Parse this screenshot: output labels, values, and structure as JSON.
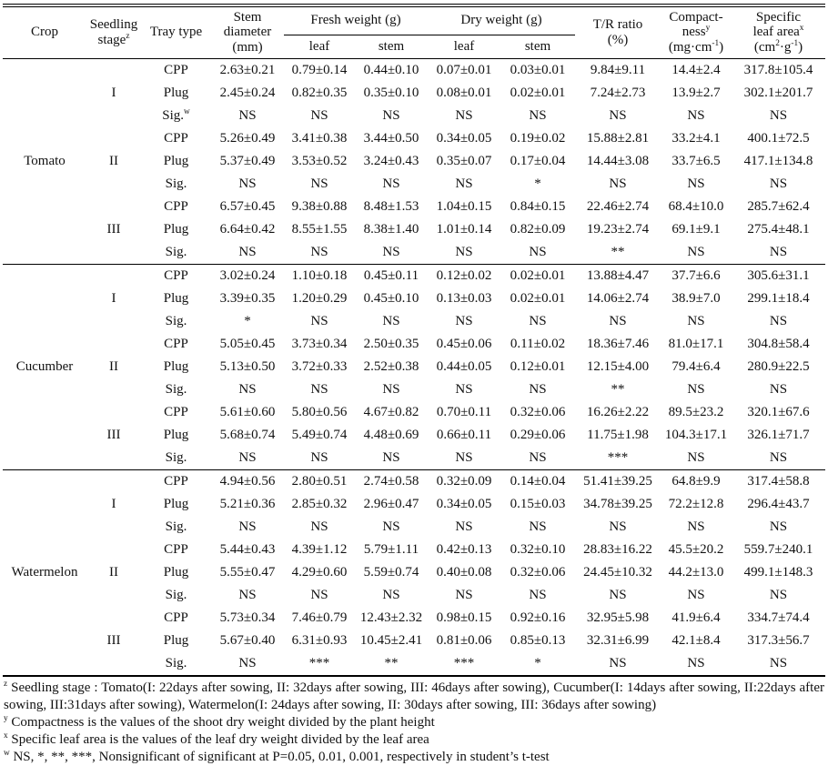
{
  "page": {
    "background": "#ffffff",
    "text_color": "#111111"
  },
  "table": {
    "header": {
      "crop": "Crop",
      "seedling_stage": {
        "line1": "Seedling",
        "line2": "stage",
        "sup": "z"
      },
      "tray_type": "Tray type",
      "stem_diameter": {
        "line1": "Stem",
        "line2": "diameter",
        "line3": "(mm)"
      },
      "fresh_weight": "Fresh weight (g)",
      "dry_weight": "Dry weight (g)",
      "sub_leaf": "leaf",
      "sub_stem": "stem",
      "tr_ratio": {
        "line1": "T/R ratio",
        "line2": "(%)"
      },
      "compactness": {
        "line1": "Compact-",
        "line2": "ness",
        "sup": "y",
        "unit_pre": "(mg·cm",
        "unit_sup": "-1",
        "unit_post": ")"
      },
      "specific_leaf_area": {
        "line1": "Specific",
        "line2": "leaf area",
        "sup": "x",
        "unit_pre": "(cm",
        "unit_sup1": "2",
        "unit_mid": "·g",
        "unit_sup2": "-1",
        "unit_post": ")"
      }
    },
    "sections": [
      {
        "crop": "Tomato",
        "stages": [
          {
            "stage": "I",
            "rows": [
              {
                "tray": "CPP",
                "values": [
                  "2.63±0.21",
                  "0.79±0.14",
                  "0.44±0.10",
                  "0.07±0.01",
                  "0.03±0.01",
                  "9.84±9.11",
                  "14.4±2.4",
                  "317.8±105.4"
                ]
              },
              {
                "tray": "Plug",
                "values": [
                  "2.45±0.24",
                  "0.82±0.35",
                  "0.35±0.10",
                  "0.08±0.01",
                  "0.02±0.01",
                  "7.24±2.73",
                  "13.9±2.7",
                  "302.1±201.7"
                ]
              },
              {
                "tray": "Sig.",
                "tray_sup": "w",
                "values": [
                  "NS",
                  "NS",
                  "NS",
                  "NS",
                  "NS",
                  "NS",
                  "NS",
                  "NS"
                ]
              }
            ]
          },
          {
            "stage": "II",
            "rows": [
              {
                "tray": "CPP",
                "values": [
                  "5.26±0.49",
                  "3.41±0.38",
                  "3.44±0.50",
                  "0.34±0.05",
                  "0.19±0.02",
                  "15.88±2.81",
                  "33.2±4.1",
                  "400.1±72.5"
                ]
              },
              {
                "tray": "Plug",
                "values": [
                  "5.37±0.49",
                  "3.53±0.52",
                  "3.24±0.43",
                  "0.35±0.07",
                  "0.17±0.04",
                  "14.44±3.08",
                  "33.7±6.5",
                  "417.1±134.8"
                ]
              },
              {
                "tray": "Sig.",
                "values": [
                  "NS",
                  "NS",
                  "NS",
                  "NS",
                  "*",
                  "NS",
                  "NS",
                  "NS"
                ]
              }
            ]
          },
          {
            "stage": "III",
            "rows": [
              {
                "tray": "CPP",
                "values": [
                  "6.57±0.45",
                  "9.38±0.88",
                  "8.48±1.53",
                  "1.04±0.15",
                  "0.84±0.15",
                  "22.46±2.74",
                  "68.4±10.0",
                  "285.7±62.4"
                ]
              },
              {
                "tray": "Plug",
                "values": [
                  "6.64±0.42",
                  "8.55±1.55",
                  "8.38±1.40",
                  "1.01±0.14",
                  "0.82±0.09",
                  "19.23±2.74",
                  "69.1±9.1",
                  "275.4±48.1"
                ]
              },
              {
                "tray": "Sig.",
                "values": [
                  "NS",
                  "NS",
                  "NS",
                  "NS",
                  "NS",
                  "**",
                  "NS",
                  "NS"
                ]
              }
            ]
          }
        ]
      },
      {
        "crop": "Cucumber",
        "stages": [
          {
            "stage": "I",
            "rows": [
              {
                "tray": "CPP",
                "values": [
                  "3.02±0.24",
                  "1.10±0.18",
                  "0.45±0.11",
                  "0.12±0.02",
                  "0.02±0.01",
                  "13.88±4.47",
                  "37.7±6.6",
                  "305.6±31.1"
                ]
              },
              {
                "tray": "Plug",
                "values": [
                  "3.39±0.35",
                  "1.20±0.29",
                  "0.45±0.10",
                  "0.13±0.03",
                  "0.02±0.01",
                  "14.06±2.74",
                  "38.9±7.0",
                  "299.1±18.4"
                ]
              },
              {
                "tray": "Sig.",
                "values": [
                  "*",
                  "NS",
                  "NS",
                  "NS",
                  "NS",
                  "NS",
                  "NS",
                  "NS"
                ]
              }
            ]
          },
          {
            "stage": "II",
            "rows": [
              {
                "tray": "CPP",
                "values": [
                  "5.05±0.45",
                  "3.73±0.34",
                  "2.50±0.35",
                  "0.45±0.06",
                  "0.11±0.02",
                  "18.36±7.46",
                  "81.0±17.1",
                  "304.8±58.4"
                ]
              },
              {
                "tray": "Plug",
                "values": [
                  "5.13±0.50",
                  "3.72±0.33",
                  "2.52±0.38",
                  "0.44±0.05",
                  "0.12±0.01",
                  "12.15±4.00",
                  "79.4±6.4",
                  "280.9±22.5"
                ]
              },
              {
                "tray": "Sig.",
                "values": [
                  "NS",
                  "NS",
                  "NS",
                  "NS",
                  "NS",
                  "**",
                  "NS",
                  "NS"
                ]
              }
            ]
          },
          {
            "stage": "III",
            "rows": [
              {
                "tray": "CPP",
                "values": [
                  "5.61±0.60",
                  "5.80±0.56",
                  "4.67±0.82",
                  "0.70±0.11",
                  "0.32±0.06",
                  "16.26±2.22",
                  "89.5±23.2",
                  "320.1±67.6"
                ]
              },
              {
                "tray": "Plug",
                "values": [
                  "5.68±0.74",
                  "5.49±0.74",
                  "4.48±0.69",
                  "0.66±0.11",
                  "0.29±0.06",
                  "11.75±1.98",
                  "104.3±17.1",
                  "326.1±71.7"
                ]
              },
              {
                "tray": "Sig.",
                "values": [
                  "NS",
                  "NS",
                  "NS",
                  "NS",
                  "NS",
                  "***",
                  "NS",
                  "NS"
                ]
              }
            ]
          }
        ]
      },
      {
        "crop": "Watermelon",
        "stages": [
          {
            "stage": "I",
            "rows": [
              {
                "tray": "CPP",
                "values": [
                  "4.94±0.56",
                  "2.80±0.51",
                  "2.74±0.58",
                  "0.32±0.09",
                  "0.14±0.04",
                  "51.41±39.25",
                  "64.8±9.9",
                  "317.4±58.8"
                ]
              },
              {
                "tray": "Plug",
                "values": [
                  "5.21±0.36",
                  "2.85±0.32",
                  "2.96±0.47",
                  "0.34±0.05",
                  "0.15±0.03",
                  "34.78±39.25",
                  "72.2±12.8",
                  "296.4±43.7"
                ]
              },
              {
                "tray": "Sig.",
                "values": [
                  "NS",
                  "NS",
                  "NS",
                  "NS",
                  "NS",
                  "NS",
                  "NS",
                  "NS"
                ]
              }
            ]
          },
          {
            "stage": "II",
            "rows": [
              {
                "tray": "CPP",
                "values": [
                  "5.44±0.43",
                  "4.39±1.12",
                  "5.79±1.11",
                  "0.42±0.13",
                  "0.32±0.10",
                  "28.83±16.22",
                  "45.5±20.2",
                  "559.7±240.1"
                ]
              },
              {
                "tray": "Plug",
                "values": [
                  "5.55±0.47",
                  "4.29±0.60",
                  "5.59±0.74",
                  "0.40±0.08",
                  "0.32±0.06",
                  "24.45±10.32",
                  "44.2±13.0",
                  "499.1±148.3"
                ]
              },
              {
                "tray": "Sig.",
                "values": [
                  "NS",
                  "NS",
                  "NS",
                  "NS",
                  "NS",
                  "NS",
                  "NS",
                  "NS"
                ]
              }
            ]
          },
          {
            "stage": "III",
            "rows": [
              {
                "tray": "CPP",
                "values": [
                  "5.73±0.34",
                  "7.46±0.79",
                  "12.43±2.32",
                  "0.98±0.15",
                  "0.92±0.16",
                  "32.95±5.98",
                  "41.9±6.4",
                  "334.7±74.4"
                ]
              },
              {
                "tray": "Plug",
                "values": [
                  "5.67±0.40",
                  "6.31±0.93",
                  "10.45±2.41",
                  "0.81±0.06",
                  "0.85±0.13",
                  "32.31±6.99",
                  "42.1±8.4",
                  "317.3±56.7"
                ]
              },
              {
                "tray": "Sig.",
                "values": [
                  "NS",
                  "***",
                  "**",
                  "***",
                  "*",
                  "NS",
                  "NS",
                  "NS"
                ]
              }
            ]
          }
        ]
      }
    ],
    "footnotes": [
      {
        "sup": "z",
        "text": "Seedling stage : Tomato(I: 22days after sowing, II: 32days after sowing, III: 46days after sowing), Cucumber(I: 14days after sowing, II:22days after sowing, III:31days after sowing), Watermelon(I: 24days after sowing, II: 30days after sowing, III: 36days after sowing)"
      },
      {
        "sup": "y",
        "text": "Compactness is the values of the shoot dry weight divided by the plant height"
      },
      {
        "sup": "x",
        "text": "Specific leaf area is the values of the leaf dry weight divided by the leaf area"
      },
      {
        "sup": "w",
        "text": "NS, *, **, ***, Nonsignificant of significant at P=0.05, 0.01, 0.001, respectively in student’s t-test"
      }
    ]
  }
}
